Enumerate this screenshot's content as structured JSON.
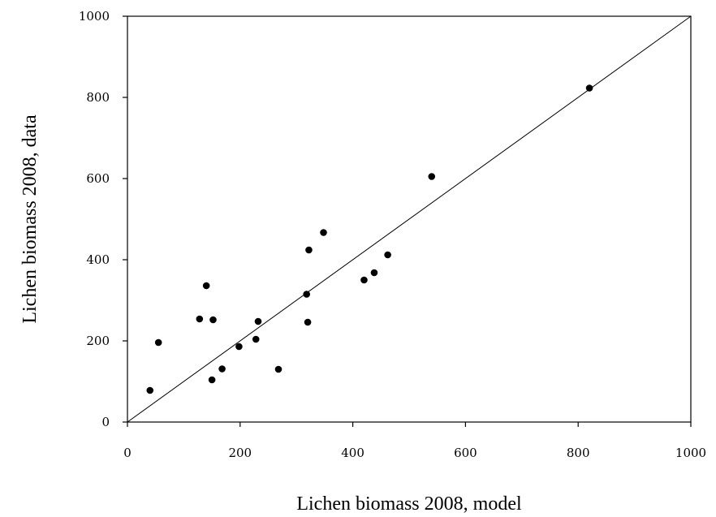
{
  "chart_data": {
    "type": "scatter",
    "xlabel": "Lichen biomass 2008, model",
    "ylabel": "Lichen biomass 2008, data",
    "xlim": [
      0,
      1000
    ],
    "ylim": [
      0,
      1000
    ],
    "xticks": [
      "0",
      "200",
      "400",
      "600",
      "800",
      "1000"
    ],
    "yticks": [
      "0",
      "200",
      "400",
      "600",
      "800",
      "1000"
    ],
    "grid": false,
    "reference_line": {
      "from": [
        0,
        0
      ],
      "to": [
        1000,
        1000
      ]
    },
    "marker_color": "#000000",
    "points": [
      {
        "x": 40,
        "y": 78
      },
      {
        "x": 55,
        "y": 196
      },
      {
        "x": 128,
        "y": 254
      },
      {
        "x": 140,
        "y": 336
      },
      {
        "x": 150,
        "y": 104
      },
      {
        "x": 152,
        "y": 252
      },
      {
        "x": 168,
        "y": 131
      },
      {
        "x": 198,
        "y": 186
      },
      {
        "x": 228,
        "y": 204
      },
      {
        "x": 232,
        "y": 248
      },
      {
        "x": 268,
        "y": 130
      },
      {
        "x": 318,
        "y": 315
      },
      {
        "x": 320,
        "y": 246
      },
      {
        "x": 322,
        "y": 424
      },
      {
        "x": 348,
        "y": 467
      },
      {
        "x": 420,
        "y": 350
      },
      {
        "x": 438,
        "y": 368
      },
      {
        "x": 462,
        "y": 412
      },
      {
        "x": 540,
        "y": 605
      },
      {
        "x": 820,
        "y": 823
      }
    ]
  }
}
